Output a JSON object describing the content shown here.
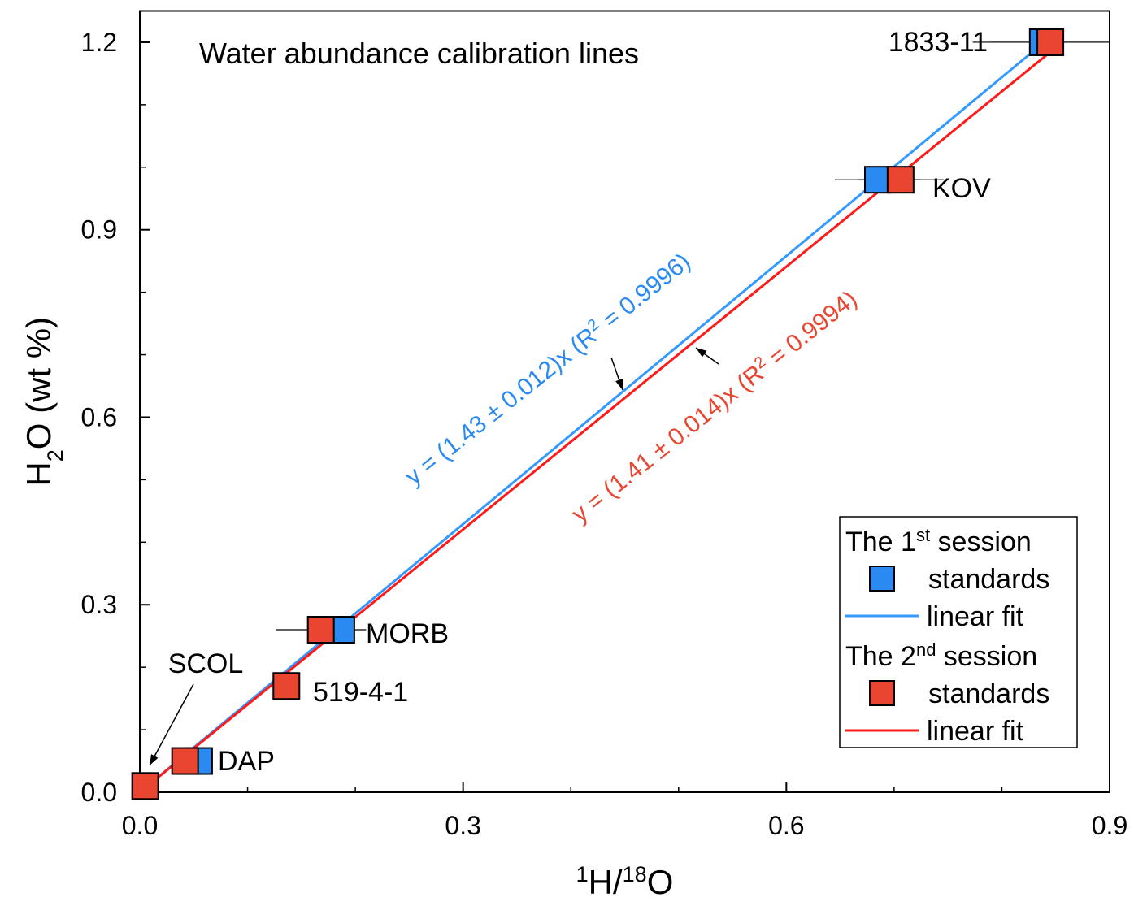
{
  "chart_data": {
    "type": "scatter",
    "title": "Water abundance calibration lines",
    "x_label": {
      "parts": [
        "1",
        "H/",
        "18",
        "O"
      ]
    },
    "y_label": {
      "parts": [
        "H",
        "2",
        "O (wt %)"
      ]
    },
    "xlim": [
      0,
      0.9
    ],
    "ylim": [
      0,
      1.25
    ],
    "xticks": [
      {
        "value": 0,
        "label": "0.0"
      },
      0.3,
      0.6,
      0.9
    ],
    "yticks": [
      {
        "value": 0,
        "label": "0.0"
      },
      0.3,
      0.6,
      0.9,
      1.2
    ],
    "xminor": [
      0.1,
      0.2,
      0.4,
      0.5,
      0.7,
      0.8
    ],
    "yminor": [
      0.1,
      0.2,
      0.4,
      0.5,
      0.7,
      0.8,
      1.0,
      1.1
    ],
    "sample_labels": [
      "1833-11",
      "KOV",
      "MORB",
      "519-4-1",
      "DAP",
      "SCOL"
    ],
    "legend_titles": [
      [
        "The 1",
        "st",
        " session"
      ],
      [
        "The 2",
        "nd",
        " session"
      ]
    ],
    "series": [
      {
        "name": "standards",
        "type": "scatter",
        "color": "#2a8af2",
        "x": [
          0.838,
          0.685,
          0.187,
          null,
          0.055,
          null
        ],
        "values": [
          1.2,
          0.98,
          0.26,
          null,
          0.05,
          null
        ],
        "xerr": [
          0.065,
          0.04,
          null,
          null,
          null,
          null
        ]
      },
      {
        "name": "linear fit",
        "type": "line",
        "color": "#3399ff",
        "x": [
          0,
          0.84
        ],
        "values": [
          0,
          1.2012
        ]
      },
      {
        "name": "standards",
        "type": "scatter",
        "color": "#ea4530",
        "x": [
          0.845,
          0.706,
          0.168,
          0.136,
          0.042,
          0.005
        ],
        "values": [
          1.2,
          0.98,
          0.26,
          0.17,
          0.05,
          0.01
        ],
        "xerr": [
          0.055,
          0.04,
          0.042,
          null,
          null,
          null
        ]
      },
      {
        "name": "linear fit",
        "type": "line",
        "color": "#ff1a1a",
        "x": [
          0,
          0.845
        ],
        "values": [
          0,
          1.1844
        ]
      }
    ],
    "annotations": [
      {
        "parts": [
          "y = (1.43 ± 0.012)x (R",
          "2",
          " = 0.9996)"
        ],
        "color": "#2a8af2"
      },
      {
        "parts": [
          "y = (1.41 ± 0.014)x (R",
          "2",
          " = 0.9994)"
        ],
        "color": "#ea4530"
      }
    ]
  }
}
